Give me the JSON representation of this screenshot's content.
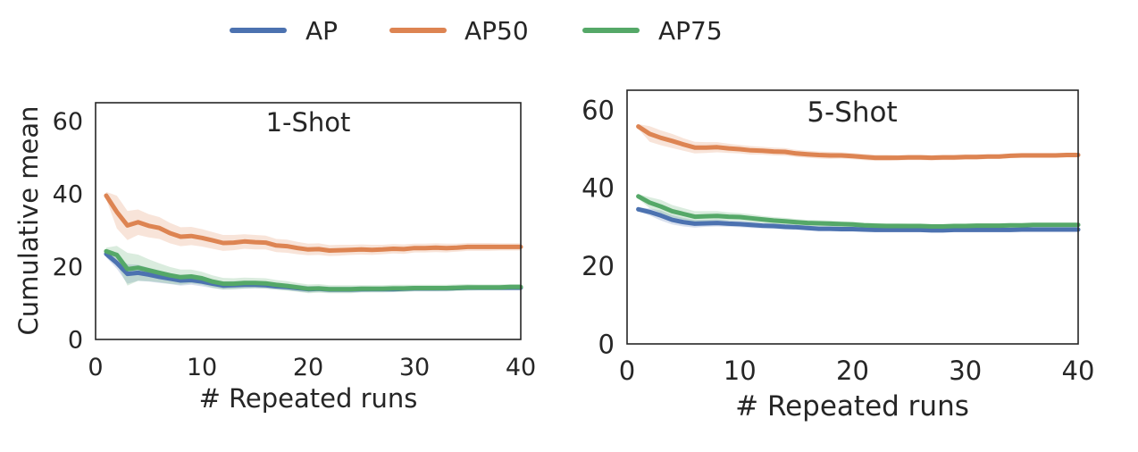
{
  "legend": {
    "placement": "top-center",
    "items": [
      {
        "label": "AP",
        "color": "#4c72b0"
      },
      {
        "label": "AP50",
        "color": "#dd8452"
      },
      {
        "label": "AP75",
        "color": "#55a868"
      }
    ]
  },
  "chart_data": [
    {
      "type": "line",
      "title": "1-Shot",
      "xlabel": "# Repeated runs",
      "ylabel": "Cumulative mean",
      "xlim": [
        0,
        40
      ],
      "ylim": [
        0,
        65
      ],
      "xticks": [
        0,
        10,
        20,
        30,
        40
      ],
      "yticks": [
        0,
        20,
        40,
        60
      ],
      "grid": false,
      "x": [
        1,
        2,
        3,
        4,
        5,
        6,
        7,
        8,
        9,
        10,
        11,
        12,
        13,
        14,
        15,
        16,
        17,
        18,
        19,
        20,
        21,
        22,
        23,
        24,
        25,
        26,
        27,
        28,
        29,
        30,
        31,
        32,
        33,
        34,
        35,
        36,
        37,
        38,
        39,
        40
      ],
      "series": [
        {
          "name": "AP",
          "color": "#4c72b0",
          "values": [
            23.5,
            21.0,
            18.0,
            18.3,
            17.8,
            17.2,
            16.7,
            16.2,
            16.3,
            15.9,
            15.3,
            14.8,
            14.9,
            15.0,
            15.0,
            14.9,
            14.6,
            14.4,
            14.1,
            13.8,
            13.9,
            13.7,
            13.7,
            13.7,
            13.8,
            13.8,
            13.8,
            13.8,
            13.9,
            14.0,
            14.0,
            14.0,
            14.0,
            14.1,
            14.2,
            14.2,
            14.2,
            14.2,
            14.2,
            14.2
          ],
          "band": [
            1.0,
            1.6,
            2.7,
            2.2,
            1.9,
            1.7,
            1.5,
            1.4,
            1.3,
            1.3,
            1.2,
            1.1,
            1.1,
            1.1,
            1.0,
            1.0,
            0.9,
            0.9,
            0.9,
            0.9,
            0.8,
            0.8,
            0.8,
            0.8,
            0.8,
            0.7,
            0.7,
            0.7,
            0.7,
            0.7,
            0.7,
            0.7,
            0.6,
            0.6,
            0.6,
            0.6,
            0.6,
            0.6,
            0.6,
            0.6
          ]
        },
        {
          "name": "AP50",
          "color": "#dd8452",
          "values": [
            39.5,
            35.0,
            31.3,
            32.2,
            31.2,
            30.6,
            29.2,
            28.2,
            28.4,
            27.9,
            27.2,
            26.5,
            26.6,
            26.9,
            26.7,
            26.6,
            25.8,
            25.6,
            25.1,
            24.7,
            24.8,
            24.4,
            24.5,
            24.6,
            24.7,
            24.6,
            24.7,
            24.9,
            24.8,
            25.1,
            25.1,
            25.2,
            25.1,
            25.2,
            25.4,
            25.4,
            25.4,
            25.4,
            25.4,
            25.4
          ],
          "band": [
            1.0,
            4.5,
            4.0,
            3.5,
            3.2,
            3.0,
            2.8,
            2.6,
            2.5,
            2.4,
            2.3,
            2.2,
            2.1,
            2.0,
            2.0,
            1.9,
            1.8,
            1.8,
            1.7,
            1.6,
            1.6,
            1.5,
            1.5,
            1.4,
            1.4,
            1.4,
            1.3,
            1.3,
            1.3,
            1.2,
            1.2,
            1.2,
            1.2,
            1.1,
            1.1,
            1.1,
            1.1,
            1.0,
            1.0,
            1.0
          ]
        },
        {
          "name": "AP75",
          "color": "#55a868",
          "values": [
            24.2,
            23.2,
            19.3,
            19.7,
            19.0,
            18.3,
            17.6,
            17.1,
            17.3,
            16.8,
            15.9,
            15.3,
            15.3,
            15.5,
            15.5,
            15.4,
            15.0,
            14.7,
            14.3,
            13.9,
            14.0,
            13.8,
            13.8,
            13.8,
            13.9,
            13.9,
            13.9,
            14.0,
            14.0,
            14.1,
            14.1,
            14.1,
            14.1,
            14.2,
            14.3,
            14.3,
            14.3,
            14.3,
            14.4,
            14.4
          ],
          "band": [
            1.0,
            2.5,
            4.5,
            3.6,
            3.0,
            2.6,
            2.3,
            2.1,
            1.9,
            1.8,
            1.7,
            1.6,
            1.5,
            1.5,
            1.4,
            1.4,
            1.3,
            1.3,
            1.2,
            1.2,
            1.2,
            1.1,
            1.1,
            1.1,
            1.0,
            1.0,
            1.0,
            1.0,
            1.0,
            0.9,
            0.9,
            0.9,
            0.9,
            0.9,
            0.9,
            0.8,
            0.8,
            0.8,
            0.8,
            0.8
          ]
        }
      ]
    },
    {
      "type": "line",
      "title": "5-Shot",
      "xlabel": "# Repeated runs",
      "ylabel": "",
      "xlim": [
        0,
        40
      ],
      "ylim": [
        0,
        65
      ],
      "xticks": [
        0,
        10,
        20,
        30,
        40
      ],
      "yticks": [
        0,
        20,
        40,
        60
      ],
      "grid": false,
      "x": [
        1,
        2,
        3,
        4,
        5,
        6,
        7,
        8,
        9,
        10,
        11,
        12,
        13,
        14,
        15,
        16,
        17,
        18,
        19,
        20,
        21,
        22,
        23,
        24,
        25,
        26,
        27,
        28,
        29,
        30,
        31,
        32,
        33,
        34,
        35,
        36,
        37,
        38,
        39,
        40
      ],
      "series": [
        {
          "name": "AP",
          "color": "#4c72b0",
          "values": [
            34.5,
            33.8,
            32.9,
            31.8,
            31.2,
            30.8,
            30.9,
            31.0,
            30.8,
            30.7,
            30.5,
            30.3,
            30.2,
            30.0,
            29.9,
            29.7,
            29.5,
            29.5,
            29.4,
            29.4,
            29.3,
            29.2,
            29.2,
            29.2,
            29.2,
            29.2,
            29.1,
            29.1,
            29.2,
            29.2,
            29.2,
            29.2,
            29.2,
            29.2,
            29.3,
            29.3,
            29.3,
            29.3,
            29.3,
            29.3
          ],
          "band": [
            0.5,
            0.9,
            1.3,
            1.2,
            1.1,
            1.0,
            0.9,
            0.9,
            0.8,
            0.8,
            0.8,
            0.7,
            0.7,
            0.7,
            0.6,
            0.6,
            0.6,
            0.6,
            0.6,
            0.6,
            0.5,
            0.5,
            0.5,
            0.5,
            0.5,
            0.5,
            0.5,
            0.5,
            0.5,
            0.5,
            0.5,
            0.4,
            0.4,
            0.4,
            0.4,
            0.4,
            0.4,
            0.4,
            0.4,
            0.4
          ]
        },
        {
          "name": "AP50",
          "color": "#dd8452",
          "values": [
            55.7,
            53.8,
            52.8,
            52.0,
            51.1,
            50.3,
            50.3,
            50.4,
            50.1,
            49.9,
            49.6,
            49.5,
            49.3,
            49.2,
            48.8,
            48.6,
            48.4,
            48.3,
            48.3,
            48.1,
            47.9,
            47.7,
            47.7,
            47.7,
            47.8,
            47.8,
            47.7,
            47.8,
            47.8,
            47.9,
            47.9,
            48.0,
            48.0,
            48.2,
            48.3,
            48.3,
            48.3,
            48.3,
            48.4,
            48.4
          ],
          "band": [
            0.6,
            2.0,
            1.9,
            1.8,
            1.6,
            1.5,
            1.4,
            1.3,
            1.2,
            1.1,
            1.1,
            1.0,
            1.0,
            1.0,
            0.9,
            0.9,
            0.9,
            0.9,
            0.8,
            0.8,
            0.8,
            0.8,
            0.8,
            0.7,
            0.7,
            0.7,
            0.7,
            0.7,
            0.7,
            0.7,
            0.7,
            0.6,
            0.6,
            0.6,
            0.6,
            0.6,
            0.6,
            0.6,
            0.6,
            0.6
          ]
        },
        {
          "name": "AP75",
          "color": "#55a868",
          "values": [
            37.8,
            36.2,
            35.2,
            34.0,
            33.3,
            32.6,
            32.7,
            32.8,
            32.6,
            32.5,
            32.2,
            31.9,
            31.6,
            31.4,
            31.2,
            31.0,
            30.9,
            30.8,
            30.7,
            30.6,
            30.4,
            30.3,
            30.2,
            30.2,
            30.2,
            30.2,
            30.1,
            30.1,
            30.2,
            30.2,
            30.3,
            30.3,
            30.3,
            30.4,
            30.4,
            30.5,
            30.5,
            30.5,
            30.5,
            30.5
          ],
          "band": [
            0.6,
            1.4,
            1.7,
            1.6,
            1.5,
            1.4,
            1.3,
            1.2,
            1.1,
            1.0,
            1.0,
            0.9,
            0.9,
            0.9,
            0.8,
            0.8,
            0.8,
            0.8,
            0.7,
            0.7,
            0.7,
            0.7,
            0.7,
            0.7,
            0.6,
            0.6,
            0.6,
            0.6,
            0.6,
            0.6,
            0.6,
            0.6,
            0.6,
            0.6,
            0.5,
            0.5,
            0.5,
            0.5,
            0.5,
            0.5
          ]
        }
      ]
    }
  ]
}
